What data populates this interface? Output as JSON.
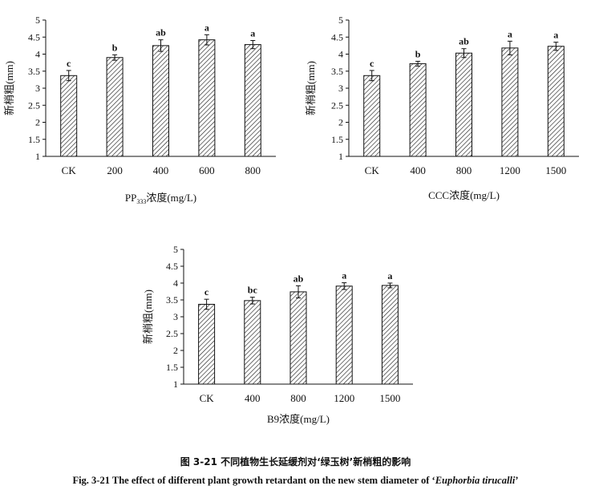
{
  "chart_data": [
    {
      "type": "bar",
      "ylabel": "新梢粗(mm)",
      "xlabel": "PP333浓度(mg/L)",
      "xlabel_parts": [
        "PP",
        "333",
        "浓度(mg/L)"
      ],
      "categories": [
        "CK",
        "200",
        "400",
        "600",
        "800"
      ],
      "values": [
        3.37,
        3.9,
        4.25,
        4.42,
        4.28
      ],
      "errors": [
        0.15,
        0.08,
        0.17,
        0.15,
        0.12
      ],
      "significance": [
        "c",
        "b",
        "ab",
        "a",
        "a"
      ],
      "ylim": [
        1,
        5
      ],
      "yticks": [
        "1",
        "1.5",
        "2",
        "2.5",
        "3",
        "3.5",
        "4",
        "4.5",
        "5"
      ],
      "grid": false,
      "bar_fill": "diagonal-hatch"
    },
    {
      "type": "bar",
      "ylabel": "新梢粗(mm)",
      "xlabel": "CCC浓度(mg/L)",
      "categories": [
        "CK",
        "400",
        "800",
        "1200",
        "1500"
      ],
      "values": [
        3.37,
        3.72,
        4.03,
        4.18,
        4.23
      ],
      "errors": [
        0.15,
        0.07,
        0.13,
        0.2,
        0.12
      ],
      "significance": [
        "c",
        "b",
        "ab",
        "a",
        "a"
      ],
      "ylim": [
        1,
        5
      ],
      "yticks": [
        "1",
        "1.5",
        "2",
        "2.5",
        "3",
        "3.5",
        "4",
        "4.5",
        "5"
      ],
      "grid": false,
      "bar_fill": "diagonal-hatch"
    },
    {
      "type": "bar",
      "ylabel": "新梢粗(mm)",
      "xlabel": "B9浓度(mg/L)",
      "categories": [
        "CK",
        "400",
        "800",
        "1200",
        "1500"
      ],
      "values": [
        3.37,
        3.48,
        3.74,
        3.91,
        3.93
      ],
      "errors": [
        0.15,
        0.1,
        0.18,
        0.1,
        0.07
      ],
      "significance": [
        "c",
        "bc",
        "ab",
        "a",
        "a"
      ],
      "ylim": [
        1,
        5
      ],
      "yticks": [
        "1",
        "1.5",
        "2",
        "2.5",
        "3",
        "3.5",
        "4",
        "4.5",
        "5"
      ],
      "grid": false,
      "bar_fill": "diagonal-hatch"
    }
  ],
  "caption": {
    "cn": "图 3-21  不同植物生长延缓剂对‘绿玉树’新梢粗的影响",
    "en_prefix": "Fig. 3-21 The effect of different plant growth retardant on the new stem diameter of ‘",
    "en_species": "Euphorbia tirucalli",
    "en_suffix": "’"
  }
}
